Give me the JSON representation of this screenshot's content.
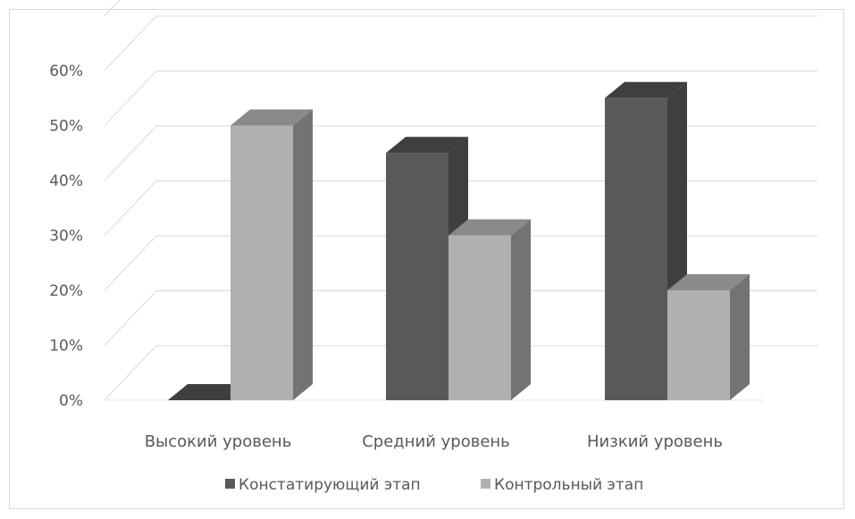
{
  "chart_data": {
    "type": "bar",
    "categories": [
      "Высокий уровень",
      "Средний уровень",
      "Низкий уровень"
    ],
    "series": [
      {
        "name": "Констатирующий этап",
        "values": [
          0,
          45,
          55
        ],
        "color": "#595959"
      },
      {
        "name": "Контрольный этап",
        "values": [
          50,
          30,
          20
        ],
        "color": "#b0b0b0"
      }
    ],
    "y_ticks": [
      "0%",
      "10%",
      "20%",
      "30%",
      "40%",
      "50%",
      "60%"
    ],
    "ylim": [
      0,
      60
    ],
    "grid": true,
    "legend": "bottom",
    "style": "3d"
  }
}
